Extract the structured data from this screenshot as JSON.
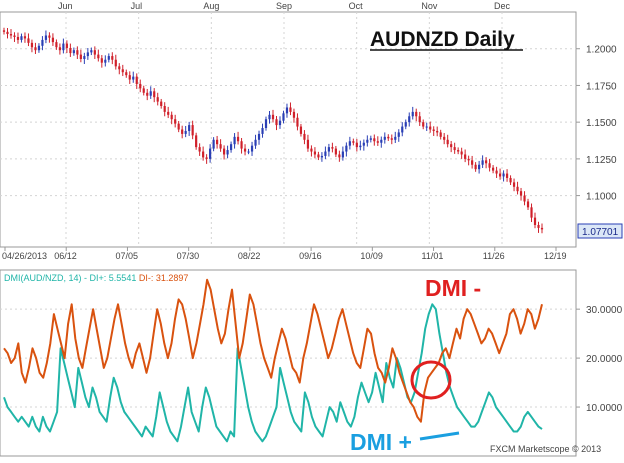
{
  "chart_data": [
    {
      "type": "candlestick",
      "title": "AUDNZD Daily",
      "top_axis_months": [
        "Jun",
        "Jul",
        "Aug",
        "Sep",
        "Oct",
        "Nov",
        "Dec"
      ],
      "x_tick_labels": [
        "04/26/2013",
        "06/12",
        "07/05",
        "07/30",
        "08/22",
        "09/16",
        "10/09",
        "11/01",
        "11/26",
        "12/19"
      ],
      "y_tick_labels": [
        "1.2000",
        "1.1750",
        "1.1500",
        "1.1250",
        "1.1000"
      ],
      "ylim": [
        1.065,
        1.225
      ],
      "last_price_label": "1.07701",
      "grid": true,
      "colors": {
        "up": "#2a3fb5",
        "down": "#d0202a"
      },
      "closes": [
        1.2115,
        1.21,
        1.209,
        1.208,
        1.206,
        1.2085,
        1.207,
        1.204,
        1.201,
        1.199,
        1.202,
        1.206,
        1.209,
        1.2075,
        1.2045,
        1.201,
        1.199,
        1.2035,
        1.2005,
        1.197,
        1.199,
        1.196,
        1.193,
        1.195,
        1.1975,
        1.199,
        1.196,
        1.1935,
        1.1905,
        1.1925,
        1.195,
        1.1925,
        1.188,
        1.186,
        1.184,
        1.182,
        1.179,
        1.181,
        1.176,
        1.173,
        1.17,
        1.168,
        1.171,
        1.167,
        1.164,
        1.161,
        1.157,
        1.155,
        1.152,
        1.149,
        1.145,
        1.142,
        1.144,
        1.148,
        1.141,
        1.133,
        1.13,
        1.126,
        1.125,
        1.132,
        1.138,
        1.135,
        1.132,
        1.128,
        1.131,
        1.135,
        1.14,
        1.137,
        1.132,
        1.13,
        1.13,
        1.134,
        1.138,
        1.142,
        1.146,
        1.152,
        1.155,
        1.152,
        1.148,
        1.151,
        1.156,
        1.16,
        1.157,
        1.153,
        1.147,
        1.142,
        1.138,
        1.132,
        1.13,
        1.128,
        1.126,
        1.127,
        1.13,
        1.133,
        1.132,
        1.128,
        1.126,
        1.13,
        1.134,
        1.137,
        1.136,
        1.133,
        1.134,
        1.136,
        1.138,
        1.139,
        1.137,
        1.136,
        1.138,
        1.14,
        1.139,
        1.138,
        1.14,
        1.143,
        1.147,
        1.15,
        1.154,
        1.157,
        1.154,
        1.15,
        1.147,
        1.147,
        1.145,
        1.144,
        1.143,
        1.14,
        1.138,
        1.135,
        1.133,
        1.131,
        1.13,
        1.128,
        1.125,
        1.124,
        1.121,
        1.118,
        1.121,
        1.124,
        1.122,
        1.119,
        1.117,
        1.115,
        1.113,
        1.115,
        1.112,
        1.109,
        1.106,
        1.103,
        1.1,
        1.096,
        1.092,
        1.085,
        1.08,
        1.078,
        1.077
      ]
    },
    {
      "type": "line",
      "title": "DMI(AUD/NZD, 14)",
      "y_tick_labels": [
        "30.0000",
        "20.0000",
        "10.0000"
      ],
      "ylim": [
        0,
        38
      ],
      "grid": true,
      "series": [
        {
          "name": "DI+",
          "last_label": "5.5541",
          "color": "#20b5a8",
          "values": [
            12,
            10,
            9,
            8,
            7,
            8,
            7,
            6,
            8,
            6,
            5,
            8,
            6,
            5,
            7,
            9,
            22,
            19,
            16,
            13,
            10,
            18,
            15,
            12,
            10,
            14,
            12,
            9,
            8,
            7,
            12,
            16,
            14,
            11,
            9,
            8,
            7,
            6,
            5,
            4,
            6,
            5,
            4,
            8,
            13,
            10,
            7,
            5,
            4,
            3,
            6,
            10,
            14,
            9,
            7,
            5,
            10,
            14,
            12,
            9,
            6,
            5,
            4,
            3,
            5,
            4,
            22,
            18,
            14,
            10,
            7,
            5,
            4,
            3,
            4,
            6,
            8,
            10,
            18,
            15,
            12,
            9,
            7,
            6,
            5,
            13,
            11,
            8,
            6,
            5,
            4,
            7,
            10,
            9,
            7,
            11,
            9,
            7,
            6,
            8,
            12,
            15,
            13,
            11,
            13,
            17,
            14,
            11,
            19,
            16,
            14,
            20,
            18,
            15,
            12,
            11,
            13,
            17,
            21,
            26,
            29,
            31,
            30,
            25,
            21,
            17,
            14,
            12,
            10,
            9,
            8,
            7,
            6,
            6,
            7,
            9,
            11,
            13,
            12,
            10,
            9,
            8,
            7,
            6,
            5,
            5,
            6,
            8,
            9,
            8,
            7,
            6,
            5.5
          ]
        },
        {
          "name": "DI-",
          "last_label": "31.2897",
          "color": "#d9520f",
          "values": [
            22,
            21,
            19,
            20,
            23,
            17,
            15,
            18,
            22,
            20,
            17,
            16,
            19,
            23,
            29,
            26,
            23,
            20,
            27,
            31,
            24,
            20,
            18,
            22,
            26,
            30,
            26,
            22,
            18,
            20,
            24,
            28,
            31,
            27,
            23,
            20,
            18,
            21,
            23,
            20,
            17,
            20,
            25,
            30,
            27,
            23,
            20,
            23,
            28,
            32,
            31,
            28,
            24,
            20,
            23,
            27,
            31,
            36,
            34,
            30,
            26,
            23,
            25,
            30,
            34,
            27,
            20,
            23,
            28,
            33,
            31,
            27,
            23,
            20,
            18,
            16,
            20,
            23,
            26,
            24,
            21,
            18,
            17,
            15,
            20,
            23,
            27,
            31,
            29,
            26,
            23,
            20,
            22,
            25,
            28,
            30,
            27,
            24,
            21,
            19,
            18,
            22,
            26,
            25,
            21,
            18,
            17,
            15,
            18,
            22,
            20,
            17,
            15,
            13,
            11,
            10,
            8,
            7,
            13,
            16,
            17,
            18,
            19,
            21,
            22,
            20,
            23,
            26,
            24,
            28,
            30,
            29,
            27,
            25,
            23,
            24,
            26,
            25,
            23,
            21,
            23,
            25,
            29,
            30,
            28,
            25,
            27,
            30,
            29,
            26,
            28,
            31
          ]
        }
      ]
    }
  ],
  "annotations": {
    "dmi_minus": "DMI -",
    "dmi_plus": "DMI +",
    "credit": "FXCM Marketscope © 2013"
  }
}
